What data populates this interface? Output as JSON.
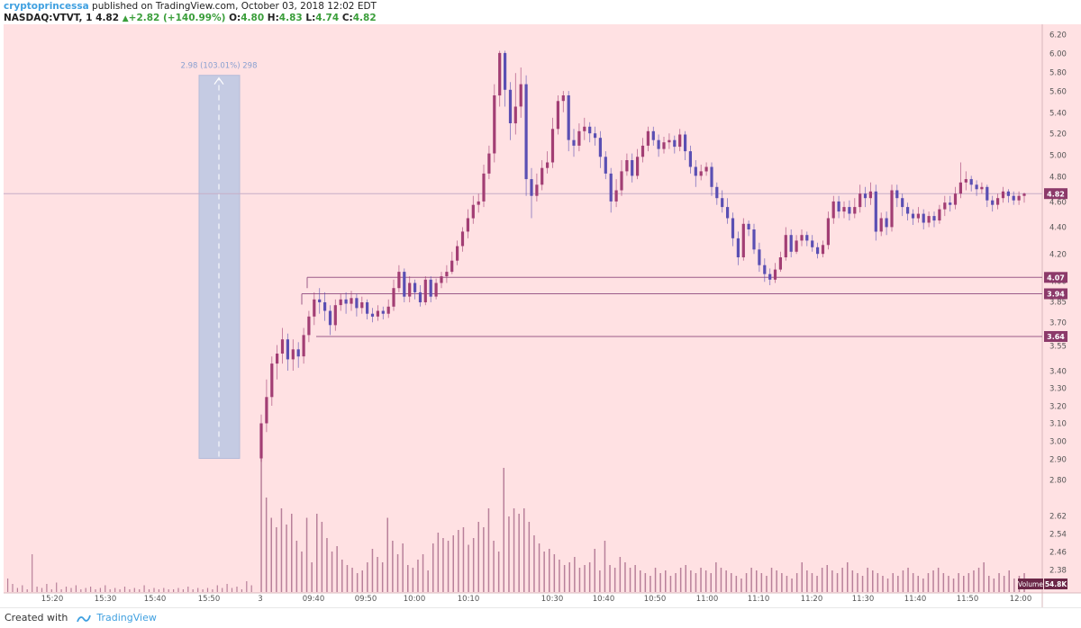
{
  "header": {
    "author": "cryptoprincessa",
    "published": " published on TradingView.com, October 03, 2018 12:02 EDT",
    "symbol": "NASDAQ:VTVT, 1",
    "last": "4.82",
    "change_arrow": "▲",
    "change": "+2.82 (+140.99%)",
    "o_label": "O:",
    "o_value": "4.80",
    "h_label": "H:",
    "h_value": "4.83",
    "l_label": "L:",
    "l_value": "4.74",
    "c_label": "C:",
    "c_value": "4.82"
  },
  "footer": {
    "created_with": "Created with",
    "brand": "TradingView"
  },
  "colors": {
    "background": "#ffe1e3",
    "up": "#a23e74",
    "down": "#5a4fb3",
    "volume": "#b8809a",
    "measure_box": "#c5cbe3",
    "measure_text": "#8aa0d0",
    "level_line": "#9b5a8a",
    "price_badge": "#8c3a6a",
    "volume_badge": "#6b2748"
  },
  "chart_data": {
    "type": "candlestick",
    "y_axis_ticks": [
      "6.20",
      "6.00",
      "5.80",
      "5.60",
      "5.40",
      "5.20",
      "5.00",
      "4.80",
      "4.60",
      "4.40",
      "4.20",
      "4.00",
      "3.85",
      "3.70",
      "3.55",
      "3.40",
      "3.30",
      "3.20",
      "3.10",
      "3.00",
      "2.90",
      "2.80",
      "2.62",
      "2.54",
      "2.46",
      "2.38"
    ],
    "x_axis_ticks": [
      "15:20",
      "15:30",
      "15:40",
      "15:50",
      "3",
      "09:40",
      "09:50",
      "10:00",
      "10:10",
      "10:30",
      "10:40",
      "10:50",
      "11:00",
      "11:10",
      "11:20",
      "11:30",
      "11:40",
      "11:50",
      "12:00"
    ],
    "last_price": "4.82",
    "volume_label": "Volume",
    "volume_last": "54.8K",
    "levels": [
      "4.07",
      "3.94",
      "3.64"
    ],
    "measure": {
      "text": "2.98 (103.01%) 298",
      "from": 2.9,
      "to": 5.88
    },
    "candles": [
      [
        2.9,
        3.1,
        2.88,
        3.15
      ],
      [
        3.1,
        3.25,
        3.05,
        3.35
      ],
      [
        3.25,
        3.45,
        3.2,
        3.5
      ],
      [
        3.45,
        3.52,
        3.35,
        3.58
      ],
      [
        3.52,
        3.62,
        3.45,
        3.7
      ],
      [
        3.62,
        3.48,
        3.4,
        3.66
      ],
      [
        3.48,
        3.55,
        3.4,
        3.62
      ],
      [
        3.55,
        3.5,
        3.42,
        3.6
      ],
      [
        3.5,
        3.65,
        3.45,
        3.7
      ],
      [
        3.65,
        3.78,
        3.6,
        3.82
      ],
      [
        3.78,
        3.9,
        3.72,
        3.95
      ],
      [
        3.9,
        3.88,
        3.8,
        3.98
      ],
      [
        3.88,
        3.82,
        3.75,
        3.95
      ],
      [
        3.82,
        3.72,
        3.65,
        3.86
      ],
      [
        3.72,
        3.86,
        3.68,
        3.9
      ],
      [
        3.86,
        3.9,
        3.82,
        3.94
      ],
      [
        3.9,
        3.87,
        3.8,
        3.95
      ],
      [
        3.87,
        3.91,
        3.82,
        3.96
      ],
      [
        3.91,
        3.84,
        3.78,
        3.94
      ],
      [
        3.84,
        3.88,
        3.8,
        3.92
      ],
      [
        3.88,
        3.8,
        3.76,
        3.9
      ],
      [
        3.8,
        3.78,
        3.74,
        3.84
      ],
      [
        3.78,
        3.82,
        3.75,
        3.86
      ],
      [
        3.82,
        3.8,
        3.76,
        3.85
      ],
      [
        3.8,
        3.85,
        3.77,
        3.9
      ],
      [
        3.85,
        3.98,
        3.82,
        4.05
      ],
      [
        3.98,
        4.12,
        3.95,
        4.18
      ],
      [
        4.12,
        3.92,
        3.88,
        4.15
      ],
      [
        3.92,
        4.02,
        3.88,
        4.08
      ],
      [
        4.02,
        3.95,
        3.9,
        4.05
      ],
      [
        3.95,
        3.88,
        3.85,
        4.0
      ],
      [
        3.88,
        4.05,
        3.86,
        4.08
      ],
      [
        4.05,
        3.92,
        3.88,
        4.08
      ],
      [
        3.92,
        4.02,
        3.9,
        4.06
      ],
      [
        4.02,
        4.08,
        3.98,
        4.12
      ],
      [
        4.08,
        4.12,
        4.02,
        4.18
      ],
      [
        4.12,
        4.22,
        4.1,
        4.3
      ],
      [
        4.22,
        4.35,
        4.18,
        4.4
      ],
      [
        4.35,
        4.48,
        4.3,
        4.52
      ],
      [
        4.48,
        4.6,
        4.42,
        4.68
      ],
      [
        4.6,
        4.72,
        4.55,
        4.8
      ],
      [
        4.72,
        4.75,
        4.65,
        4.82
      ],
      [
        4.75,
        5.0,
        4.7,
        5.08
      ],
      [
        5.0,
        5.18,
        4.95,
        5.25
      ],
      [
        5.18,
        5.7,
        5.1,
        5.8
      ],
      [
        5.7,
        6.08,
        5.6,
        6.1
      ],
      [
        6.08,
        5.75,
        5.6,
        6.1
      ],
      [
        5.75,
        5.45,
        5.3,
        5.82
      ],
      [
        5.45,
        5.6,
        5.35,
        5.9
      ],
      [
        5.6,
        5.8,
        5.5,
        5.95
      ],
      [
        5.8,
        4.95,
        4.8,
        5.88
      ],
      [
        4.95,
        4.8,
        4.6,
        5.05
      ],
      [
        4.8,
        4.9,
        4.75,
        5.0
      ],
      [
        4.9,
        5.05,
        4.85,
        5.12
      ],
      [
        5.05,
        5.1,
        5.0,
        5.2
      ],
      [
        5.1,
        5.4,
        5.05,
        5.5
      ],
      [
        5.4,
        5.65,
        5.35,
        5.7
      ],
      [
        5.65,
        5.7,
        5.55,
        5.74
      ],
      [
        5.7,
        5.3,
        5.2,
        5.74
      ],
      [
        5.3,
        5.25,
        5.15,
        5.4
      ],
      [
        5.25,
        5.38,
        5.2,
        5.45
      ],
      [
        5.38,
        5.42,
        5.3,
        5.5
      ],
      [
        5.42,
        5.36,
        5.28,
        5.46
      ],
      [
        5.36,
        5.32,
        5.25,
        5.42
      ],
      [
        5.32,
        5.15,
        5.05,
        5.38
      ],
      [
        5.15,
        5.0,
        4.95,
        5.2
      ],
      [
        5.0,
        4.75,
        4.65,
        5.05
      ],
      [
        4.75,
        4.85,
        4.7,
        4.95
      ],
      [
        4.85,
        5.02,
        4.8,
        5.12
      ],
      [
        5.02,
        5.12,
        4.98,
        5.18
      ],
      [
        5.12,
        4.98,
        4.92,
        5.18
      ],
      [
        4.98,
        5.15,
        4.95,
        5.22
      ],
      [
        5.15,
        5.25,
        5.1,
        5.32
      ],
      [
        5.25,
        5.38,
        5.2,
        5.42
      ],
      [
        5.38,
        5.3,
        5.25,
        5.42
      ],
      [
        5.3,
        5.22,
        5.15,
        5.35
      ],
      [
        5.22,
        5.28,
        5.18,
        5.33
      ],
      [
        5.28,
        5.3,
        5.22,
        5.36
      ],
      [
        5.3,
        5.24,
        5.18,
        5.34
      ],
      [
        5.24,
        5.35,
        5.2,
        5.4
      ],
      [
        5.35,
        5.2,
        5.12,
        5.38
      ],
      [
        5.2,
        5.06,
        5.0,
        5.25
      ],
      [
        5.06,
        4.98,
        4.88,
        5.12
      ],
      [
        4.98,
        5.02,
        4.94,
        5.08
      ],
      [
        5.02,
        5.06,
        4.98,
        5.1
      ],
      [
        5.06,
        4.88,
        4.8,
        5.1
      ],
      [
        4.88,
        4.78,
        4.72,
        4.92
      ],
      [
        4.78,
        4.7,
        4.65,
        4.85
      ],
      [
        4.7,
        4.6,
        4.55,
        4.78
      ],
      [
        4.6,
        4.42,
        4.35,
        4.65
      ],
      [
        4.42,
        4.25,
        4.18,
        4.48
      ],
      [
        4.25,
        4.55,
        4.22,
        4.6
      ],
      [
        4.55,
        4.5,
        4.44,
        4.58
      ],
      [
        4.5,
        4.32,
        4.28,
        4.55
      ],
      [
        4.32,
        4.18,
        4.12,
        4.38
      ],
      [
        4.18,
        4.1,
        4.03,
        4.24
      ],
      [
        4.1,
        4.05,
        4.0,
        4.15
      ],
      [
        4.05,
        4.14,
        4.02,
        4.2
      ],
      [
        4.14,
        4.25,
        4.12,
        4.3
      ],
      [
        4.25,
        4.45,
        4.22,
        4.52
      ],
      [
        4.45,
        4.3,
        4.25,
        4.5
      ],
      [
        4.3,
        4.4,
        4.28,
        4.45
      ],
      [
        4.4,
        4.45,
        4.35,
        4.5
      ],
      [
        4.45,
        4.4,
        4.35,
        4.48
      ],
      [
        4.4,
        4.34,
        4.3,
        4.45
      ],
      [
        4.34,
        4.28,
        4.24,
        4.38
      ],
      [
        4.28,
        4.36,
        4.25,
        4.4
      ],
      [
        4.36,
        4.6,
        4.32,
        4.66
      ],
      [
        4.6,
        4.75,
        4.55,
        4.8
      ],
      [
        4.75,
        4.66,
        4.6,
        4.8
      ],
      [
        4.66,
        4.7,
        4.6,
        4.75
      ],
      [
        4.7,
        4.64,
        4.58,
        4.76
      ],
      [
        4.64,
        4.7,
        4.6,
        4.78
      ],
      [
        4.7,
        4.82,
        4.65,
        4.9
      ],
      [
        4.82,
        4.78,
        4.7,
        4.88
      ],
      [
        4.78,
        4.84,
        4.72,
        4.92
      ],
      [
        4.84,
        4.48,
        4.4,
        4.9
      ],
      [
        4.48,
        4.6,
        4.44,
        4.65
      ],
      [
        4.6,
        4.52,
        4.45,
        4.66
      ],
      [
        4.52,
        4.85,
        4.48,
        4.9
      ],
      [
        4.85,
        4.78,
        4.7,
        4.9
      ],
      [
        4.78,
        4.7,
        4.62,
        4.82
      ],
      [
        4.7,
        4.64,
        4.58,
        4.74
      ],
      [
        4.64,
        4.6,
        4.54,
        4.68
      ],
      [
        4.6,
        4.64,
        4.56,
        4.7
      ],
      [
        4.64,
        4.56,
        4.5,
        4.68
      ],
      [
        4.56,
        4.62,
        4.52,
        4.66
      ],
      [
        4.62,
        4.58,
        4.52,
        4.66
      ],
      [
        4.58,
        4.68,
        4.55,
        4.72
      ],
      [
        4.68,
        4.74,
        4.62,
        4.8
      ],
      [
        4.74,
        4.72,
        4.66,
        4.8
      ],
      [
        4.72,
        4.82,
        4.68,
        4.88
      ],
      [
        4.82,
        4.92,
        4.78,
        5.1
      ],
      [
        4.92,
        4.95,
        4.85,
        5.02
      ],
      [
        4.95,
        4.9,
        4.84,
        4.98
      ],
      [
        4.9,
        4.86,
        4.8,
        4.94
      ],
      [
        4.86,
        4.88,
        4.82,
        4.92
      ],
      [
        4.88,
        4.76,
        4.7,
        4.9
      ],
      [
        4.76,
        4.72,
        4.66,
        4.8
      ],
      [
        4.72,
        4.78,
        4.68,
        4.82
      ],
      [
        4.78,
        4.84,
        4.74,
        4.88
      ],
      [
        4.84,
        4.8,
        4.74,
        4.86
      ],
      [
        4.8,
        4.76,
        4.72,
        4.84
      ],
      [
        4.76,
        4.8,
        4.72,
        4.84
      ],
      [
        4.8,
        4.82,
        4.74,
        4.83
      ]
    ],
    "volumes_pre": [
      0.1,
      0.06,
      0.03,
      0.05,
      0.02,
      0.28,
      0.04,
      0.03,
      0.06,
      0.02,
      0.07,
      0.02,
      0.04,
      0.03,
      0.05,
      0.02,
      0.03,
      0.04,
      0.02,
      0.03,
      0.05,
      0.02,
      0.03,
      0.02,
      0.04,
      0.02,
      0.03,
      0.02,
      0.05,
      0.02,
      0.03,
      0.02,
      0.03,
      0.02,
      0.02,
      0.03,
      0.02,
      0.04,
      0.02,
      0.03,
      0.02,
      0.03,
      0.02,
      0.05,
      0.03,
      0.06,
      0.03,
      0.04,
      0.02,
      0.08,
      0.05
    ],
    "volumes": [
      1.0,
      0.7,
      0.55,
      0.48,
      0.62,
      0.5,
      0.58,
      0.38,
      0.3,
      0.55,
      0.22,
      0.58,
      0.52,
      0.4,
      0.3,
      0.34,
      0.24,
      0.2,
      0.18,
      0.14,
      0.16,
      0.22,
      0.32,
      0.26,
      0.22,
      0.55,
      0.38,
      0.28,
      0.36,
      0.2,
      0.18,
      0.24,
      0.28,
      0.16,
      0.36,
      0.44,
      0.4,
      0.38,
      0.42,
      0.46,
      0.48,
      0.35,
      0.4,
      0.52,
      0.48,
      0.62,
      0.38,
      0.3,
      0.92,
      0.56,
      0.62,
      0.58,
      0.62,
      0.52,
      0.42,
      0.36,
      0.3,
      0.32,
      0.28,
      0.24,
      0.2,
      0.22,
      0.26,
      0.18,
      0.2,
      0.22,
      0.32,
      0.16,
      0.38,
      0.2,
      0.18,
      0.26,
      0.22,
      0.18,
      0.2,
      0.16,
      0.14,
      0.12,
      0.18,
      0.14,
      0.16,
      0.12,
      0.14,
      0.18,
      0.2,
      0.16,
      0.14,
      0.18,
      0.16,
      0.14,
      0.22,
      0.18,
      0.16,
      0.14,
      0.12,
      0.1,
      0.14,
      0.18,
      0.16,
      0.14,
      0.12,
      0.18,
      0.16,
      0.14,
      0.12,
      0.1,
      0.14,
      0.22,
      0.16,
      0.14,
      0.12,
      0.18,
      0.2,
      0.16,
      0.14,
      0.18,
      0.22,
      0.16,
      0.14,
      0.12,
      0.18,
      0.16,
      0.14,
      0.12,
      0.1,
      0.14,
      0.12,
      0.16,
      0.18,
      0.14,
      0.12,
      0.1,
      0.14,
      0.16,
      0.18,
      0.14,
      0.12,
      0.1,
      0.14,
      0.12,
      0.14,
      0.16,
      0.18,
      0.22,
      0.12,
      0.1,
      0.14,
      0.12,
      0.16,
      0.1,
      0.12,
      0.14
    ]
  }
}
